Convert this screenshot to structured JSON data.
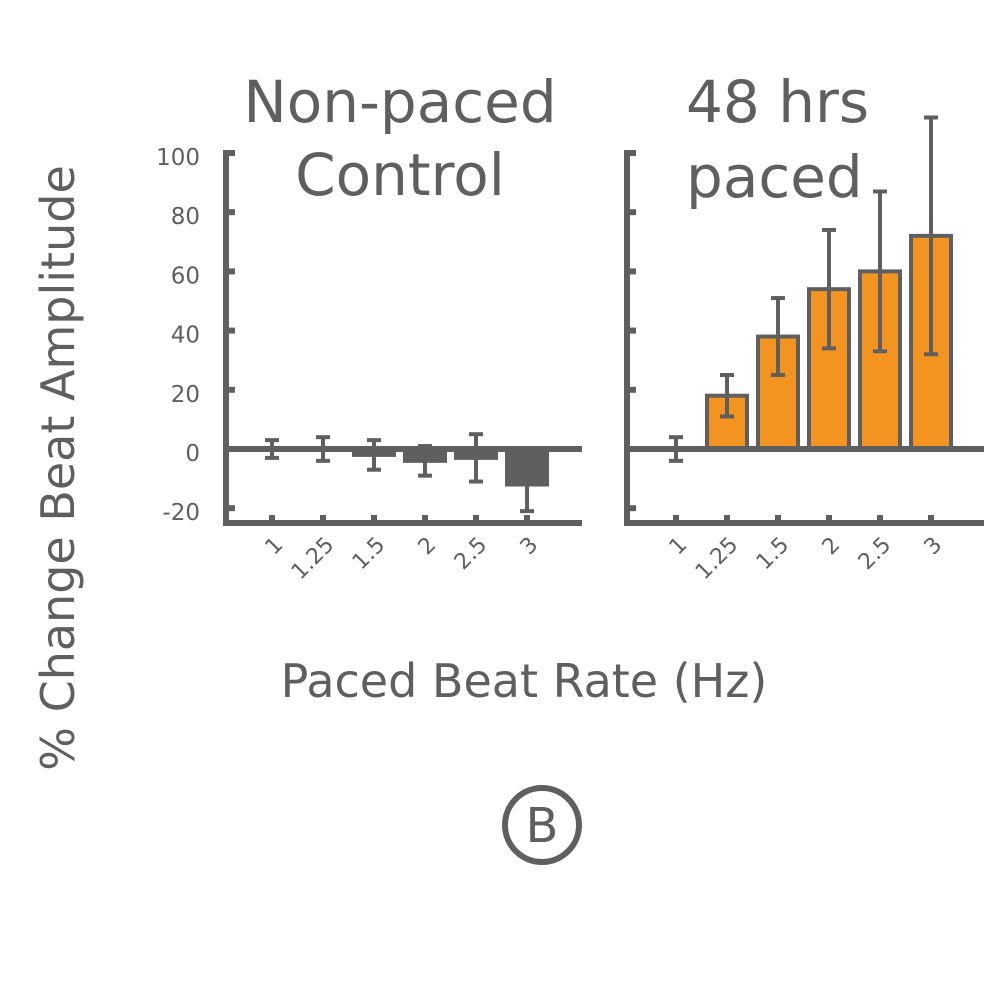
{
  "colors": {
    "axis": "#5f5f5f",
    "control_bar": "#5f5f5f",
    "paced_bar": "#f39420",
    "text": "#5f5f5f"
  },
  "y_axis_label": "% Change Beat Amplitude",
  "x_axis_label": "Paced Beat Rate (Hz)",
  "panel_letter": "B",
  "chart_data": [
    {
      "type": "bar",
      "title_lines": [
        "Non-paced",
        "Control"
      ],
      "categories": [
        "1",
        "1.25",
        "1.5",
        "2",
        "2.5",
        "3"
      ],
      "values": [
        0,
        0,
        -2,
        -4,
        -3,
        -12
      ],
      "error": [
        3,
        4,
        5,
        5,
        8,
        9
      ],
      "xlabel": "Paced Beat Rate (Hz)",
      "ylabel": "% Change Beat Amplitude",
      "ylim": [
        -25,
        100
      ],
      "yticks": [
        100,
        80,
        60,
        40,
        20,
        0,
        -20
      ],
      "ytick_labels": [
        "100",
        "80",
        "60",
        "40",
        "20",
        "0",
        "-20"
      ]
    },
    {
      "type": "bar",
      "title_lines": [
        "48 hrs",
        "paced"
      ],
      "categories": [
        "1",
        "1.25",
        "1.5",
        "2",
        "2.5",
        "3"
      ],
      "values": [
        0,
        18,
        38,
        54,
        60,
        72
      ],
      "error": [
        4,
        7,
        13,
        20,
        27,
        40
      ],
      "xlabel": "Paced Beat Rate (Hz)",
      "ylabel": "% Change Beat Amplitude",
      "ylim": [
        -25,
        100
      ],
      "yticks": [
        100,
        80,
        60,
        40,
        20,
        0,
        -20
      ],
      "ytick_labels": []
    }
  ]
}
